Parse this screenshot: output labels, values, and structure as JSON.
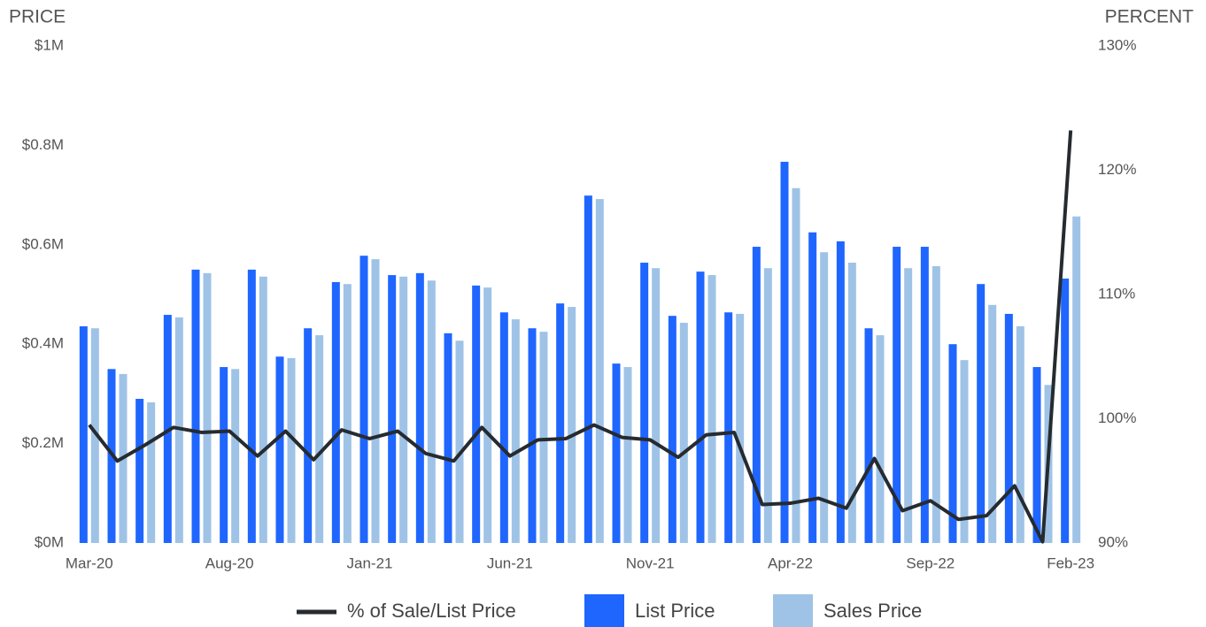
{
  "chart_data": {
    "type": "bar",
    "y_axis_title": "PRICE",
    "y2_axis_title": "PERCENT",
    "categories": [
      "Mar-20",
      null,
      null,
      null,
      null,
      "Aug-20",
      null,
      null,
      null,
      null,
      "Jan-21",
      null,
      null,
      null,
      null,
      "Jun-21",
      null,
      null,
      null,
      null,
      "Nov-21",
      null,
      null,
      null,
      null,
      "Apr-22",
      null,
      null,
      null,
      null,
      "Sep-22",
      null,
      null,
      null,
      null,
      "Feb-23"
    ],
    "series": [
      {
        "name": "% of Sale/List Price",
        "type": "line",
        "axis": "y2",
        "color": "#262b30",
        "values": [
          99.5,
          96.6,
          97.9,
          99.3,
          98.9,
          99.0,
          97.0,
          99.0,
          96.7,
          99.1,
          98.4,
          99.0,
          97.2,
          96.6,
          99.3,
          97.0,
          98.3,
          98.4,
          99.5,
          98.5,
          98.3,
          96.9,
          98.7,
          98.9,
          93.1,
          93.2,
          93.6,
          92.8,
          96.8,
          92.6,
          93.4,
          91.9,
          92.2,
          94.6,
          90.1,
          123.2
        ]
      },
      {
        "name": "List Price",
        "type": "bar",
        "color": "#1f66ff",
        "values": [
          436000,
          350000,
          290000,
          459000,
          550000,
          354000,
          550000,
          375000,
          432000,
          525000,
          578000,
          539000,
          543000,
          422000,
          518000,
          464000,
          432000,
          482000,
          699000,
          361000,
          564000,
          457000,
          546000,
          464000,
          596000,
          767000,
          625000,
          607000,
          432000,
          596000,
          596000,
          400000,
          521000,
          461000,
          354000,
          532000
        ]
      },
      {
        "name": "Sales Price",
        "type": "bar",
        "color": "#9fc3e6",
        "values": [
          432000,
          340000,
          283000,
          454000,
          543000,
          350000,
          536000,
          372000,
          418000,
          521000,
          571000,
          536000,
          528000,
          407000,
          514000,
          450000,
          425000,
          475000,
          692000,
          354000,
          553000,
          443000,
          539000,
          461000,
          553000,
          714000,
          585000,
          564000,
          418000,
          553000,
          557000,
          368000,
          479000,
          436000,
          318000,
          657000
        ]
      }
    ],
    "ylim": [
      0,
      1000000
    ],
    "yticks": [
      {
        "value": 0,
        "label": "$0M"
      },
      {
        "value": 200000,
        "label": "$0.2M"
      },
      {
        "value": 400000,
        "label": "$0.4M"
      },
      {
        "value": 600000,
        "label": "$0.6M"
      },
      {
        "value": 800000,
        "label": "$0.8M"
      },
      {
        "value": 1000000,
        "label": "$1M"
      }
    ],
    "y2lim": [
      90,
      130
    ],
    "y2ticks": [
      {
        "value": 90,
        "label": "90%"
      },
      {
        "value": 100,
        "label": "100%"
      },
      {
        "value": 110,
        "label": "110%"
      },
      {
        "value": 120,
        "label": "120%"
      },
      {
        "value": 130,
        "label": "130%"
      }
    ],
    "grid": false
  }
}
